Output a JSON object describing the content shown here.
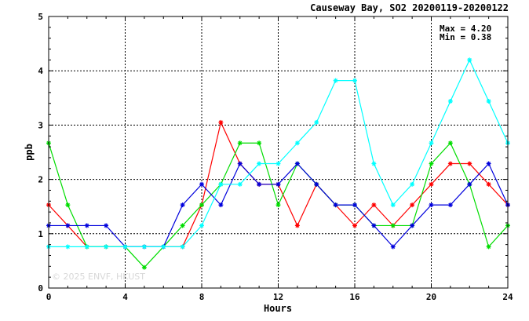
{
  "chart_data": {
    "type": "line",
    "title": "Causeway Bay, SO2 20200119-20200122",
    "xlabel": "Hours",
    "ylabel": "ppb",
    "xlim": [
      0,
      24
    ],
    "ylim": [
      0,
      5
    ],
    "xticks": [
      "0",
      "4",
      "8",
      "12",
      "16",
      "20",
      "24"
    ],
    "yticks": [
      "0",
      "1",
      "2",
      "3",
      "4",
      "5"
    ],
    "grid": true,
    "stats": {
      "max_label": "Max = 4.20",
      "min_label": "Min = 0.38"
    },
    "watermark": "© 2025 ENVF, HKUST",
    "x": [
      0,
      1,
      2,
      3,
      4,
      5,
      6,
      7,
      8,
      9,
      10,
      11,
      12,
      13,
      14,
      15,
      16,
      17,
      18,
      19,
      20,
      21,
      22,
      23,
      24
    ],
    "series": [
      {
        "color": "#ff0000",
        "values": [
          1.53,
          1.15,
          0.76,
          0.76,
          0.76,
          0.76,
          0.76,
          0.76,
          1.53,
          3.05,
          2.29,
          1.91,
          1.91,
          1.15,
          1.91,
          1.53,
          1.15,
          1.53,
          1.15,
          1.53,
          1.91,
          2.29,
          2.29,
          1.91,
          1.53
        ]
      },
      {
        "color": "#00dd00",
        "values": [
          2.67,
          1.53,
          0.76,
          0.76,
          0.76,
          0.38,
          0.76,
          1.15,
          1.53,
          1.91,
          2.67,
          2.67,
          1.53,
          2.29,
          1.91,
          1.53,
          1.53,
          1.15,
          1.15,
          1.15,
          2.29,
          2.67,
          1.91,
          0.76,
          1.15
        ]
      },
      {
        "color": "#0000dd",
        "values": [
          1.15,
          1.15,
          1.15,
          1.15,
          0.76,
          0.76,
          0.76,
          1.53,
          1.91,
          1.53,
          2.29,
          1.91,
          1.91,
          2.29,
          1.91,
          1.53,
          1.53,
          1.15,
          0.76,
          1.15,
          1.53,
          1.53,
          1.91,
          2.29,
          1.53
        ]
      },
      {
        "color": "#00ffff",
        "values": [
          0.76,
          0.76,
          0.76,
          0.76,
          0.76,
          0.76,
          0.76,
          0.76,
          1.15,
          1.91,
          1.91,
          2.29,
          2.29,
          2.67,
          3.05,
          3.82,
          3.82,
          2.29,
          1.53,
          1.91,
          2.67,
          3.44,
          4.2,
          3.44,
          2.67
        ]
      }
    ]
  }
}
